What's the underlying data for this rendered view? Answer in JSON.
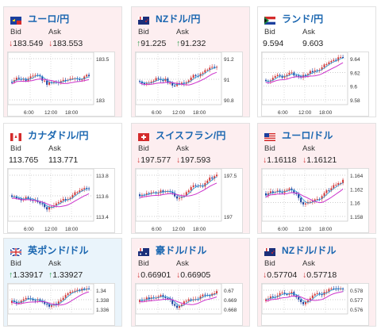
{
  "cards": [
    {
      "title": "ユーロ/円",
      "bid": "183.549",
      "ask": "183.553",
      "arrow": "down",
      "bg": "pink",
      "flag": "eu",
      "yticks": [
        "183.5",
        "183"
      ],
      "xticks": [
        "6:00",
        "12:00",
        "18:00"
      ]
    },
    {
      "title": "NZドル/円",
      "bid": "91.225",
      "ask": "91.232",
      "arrow": "up",
      "bg": "pink",
      "flag": "nz",
      "yticks": [
        "91.2",
        "91",
        "90.8"
      ],
      "xticks": [
        "6:00",
        "12:00",
        "18:00"
      ]
    },
    {
      "title": "ランド/円",
      "bid": "9.594",
      "ask": "9.603",
      "arrow": "none",
      "bg": "white",
      "flag": "za",
      "yticks": [
        "9.64",
        "9.62",
        "9.6",
        "9.58"
      ],
      "xticks": [
        "6:00",
        "12:00",
        "18:00"
      ]
    },
    {
      "title": "カナダドル/円",
      "bid": "113.765",
      "ask": "113.771",
      "arrow": "none",
      "bg": "white",
      "flag": "ca",
      "yticks": [
        "113.8",
        "113.6",
        "113.4"
      ],
      "xticks": [
        "6:00",
        "12:00",
        "18:00"
      ]
    },
    {
      "title": "スイスフラン/円",
      "bid": "197.577",
      "ask": "197.593",
      "arrow": "down",
      "bg": "pink",
      "flag": "ch",
      "yticks": [
        "197.5",
        "197"
      ],
      "xticks": [
        "6:00",
        "12:00",
        "18:00"
      ]
    },
    {
      "title": "ユーロ/ドル",
      "bid": "1.16118",
      "ask": "1.16121",
      "arrow": "down",
      "bg": "pink",
      "flag": "us",
      "yticks": [
        "1.164",
        "1.162",
        "1.16",
        "1.158"
      ],
      "xticks": [
        "6:00",
        "12:00",
        "18:00"
      ]
    },
    {
      "title": "英ポンド/ドル",
      "bid": "1.33917",
      "ask": "1.33927",
      "arrow": "up",
      "bg": "blue",
      "flag": "gb",
      "yticks": [
        "1.34",
        "1.338",
        "1.336"
      ],
      "xticks": []
    },
    {
      "title": "豪ドル/ドル",
      "bid": "0.66901",
      "ask": "0.66905",
      "arrow": "down",
      "bg": "pink",
      "flag": "au",
      "yticks": [
        "0.67",
        "0.669",
        "0.668"
      ],
      "xticks": []
    },
    {
      "title": "NZドル/ドル",
      "bid": "0.57704",
      "ask": "0.57718",
      "arrow": "down",
      "bg": "pink",
      "flag": "nz",
      "yticks": [
        "0.578",
        "0.577",
        "0.576"
      ],
      "xticks": []
    }
  ],
  "labels": {
    "bid": "Bid",
    "ask": "Ask"
  },
  "colors": {
    "up": "#2e9e4e",
    "down": "#d23b3b",
    "ma": "#cc33cc",
    "sig": "#2b9bd6",
    "title": "#1a66b0"
  }
}
